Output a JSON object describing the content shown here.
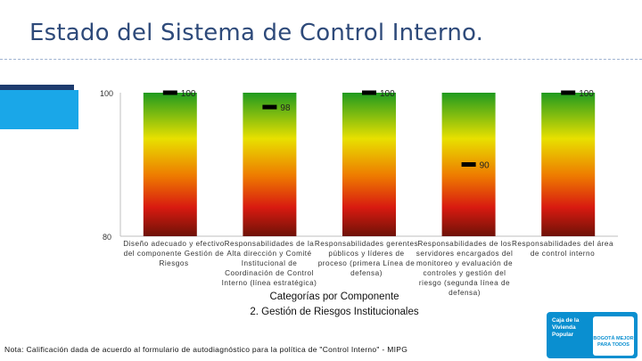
{
  "slide": {
    "title": "Estado del Sistema de Control Interno.",
    "footnote": "Nota: Calificación dada de acuerdo al formulario de autodiagnóstico para la política de \"Control Interno\" - MIPG"
  },
  "logo": {
    "city_text": "Caja de la Vivienda Popular",
    "mayor_text": "BOGOTÁ MEJOR PARA TODOS"
  },
  "colors": {
    "gradient_top": "#1f9a1f",
    "gradient_mid": "#e8e000",
    "gradient_orange": "#ee7a00",
    "gradient_low": "#d81a10",
    "gradient_bottom": "#6e1208",
    "marker": "#000000",
    "title": "#2e4a7a",
    "accent_dark": "#1d3b6e",
    "accent_light": "#1aa7e8"
  },
  "chart_data": {
    "type": "bar",
    "categories": [
      "Diseño adecuado y efectivo del componente Gestión de Riesgos",
      "Responsabilidades de la Alta dirección y Comité Institucional de Coordinación de Control Interno (línea estratégica)",
      "Responsabilidades gerentes públicos y líderes de proceso (primera Línea de defensa)",
      "Responsabilidades de los servidores encargados del monitoreo y evaluación de controles y gestión del riesgo (segunda línea de defensa)",
      "Responsabilidades del área de control interno"
    ],
    "values": [
      100,
      98,
      100,
      90,
      100
    ],
    "data_labels": [
      "100",
      "98",
      "100",
      "90",
      "100"
    ],
    "ylim": [
      80,
      100
    ],
    "yticks": [
      "80",
      "100"
    ],
    "xlabel_line1": "Categorías por Componente",
    "xlabel_line2": "2. Gestión de Riesgos Institucionales",
    "ylabel": "",
    "grid": false,
    "legend": "none"
  }
}
